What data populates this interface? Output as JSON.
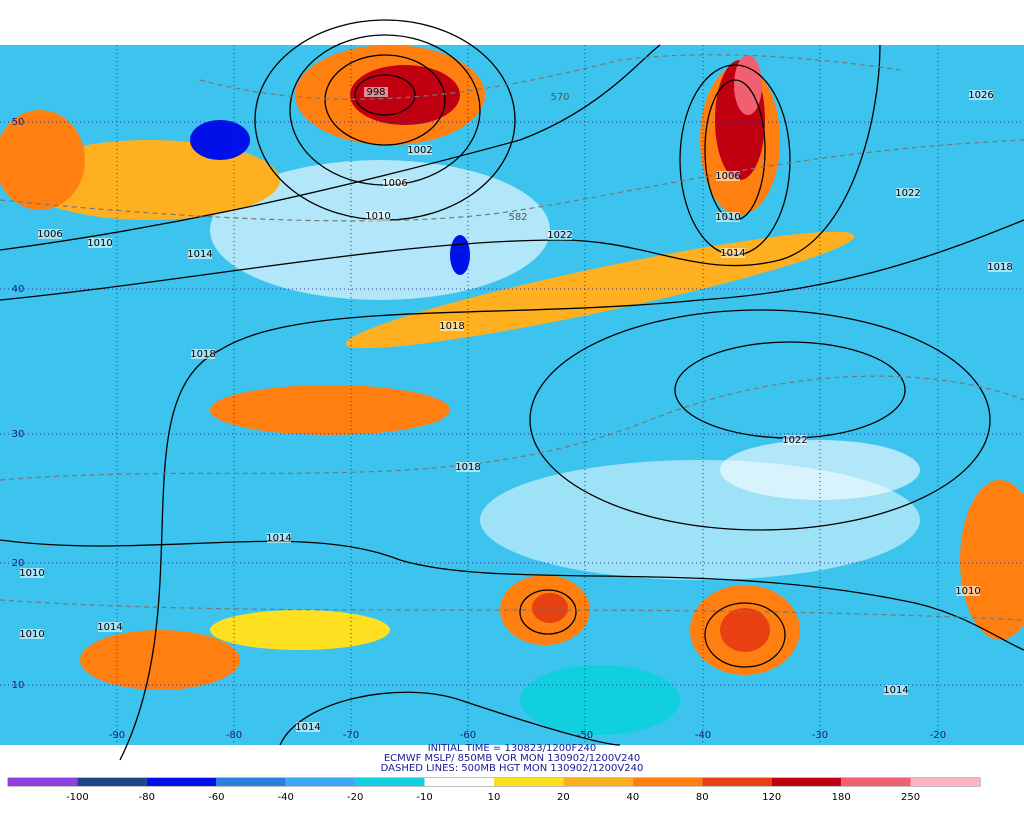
{
  "map": {
    "isobar_labels": [
      "998",
      "1002",
      "1006",
      "1010",
      "1006",
      "1010",
      "1014",
      "1022",
      "1006",
      "1010",
      "1014",
      "1022",
      "1026",
      "1018",
      "1018",
      "1018",
      "1022",
      "1018",
      "1014",
      "1010",
      "1014",
      "1010",
      "1010",
      "1014",
      "1014"
    ],
    "height_labels": [
      "570",
      "582"
    ],
    "lat_labels": [
      "50",
      "40",
      "30",
      "20",
      "10"
    ],
    "lon_labels": [
      "-90",
      "-80",
      "-70",
      "-60",
      "-50",
      "-40",
      "-30",
      "-20"
    ]
  },
  "title": {
    "lines": [
      "INITIAL TIME = 130823/1200F240",
      "ECMWF MSLP/ 850MB VOR MON 130902/1200V240",
      "DASHED LINES: 500MB HGT MON 130902/1200V240"
    ]
  },
  "colorbar": {
    "colors": [
      "#9040e0",
      "#1a4888",
      "#0010e8",
      "#2a80e0",
      "#3aa8f4",
      "#10d0e0",
      "#ffffff",
      "#ffe020",
      "#ffb020",
      "#ff8010",
      "#e84010",
      "#c00010",
      "#f06070",
      "#ffb4c4"
    ],
    "labels": [
      "-100",
      "-80",
      "-60",
      "-40",
      "-20",
      "-10",
      "10",
      "20",
      "40",
      "80",
      "120",
      "180",
      "250"
    ]
  }
}
